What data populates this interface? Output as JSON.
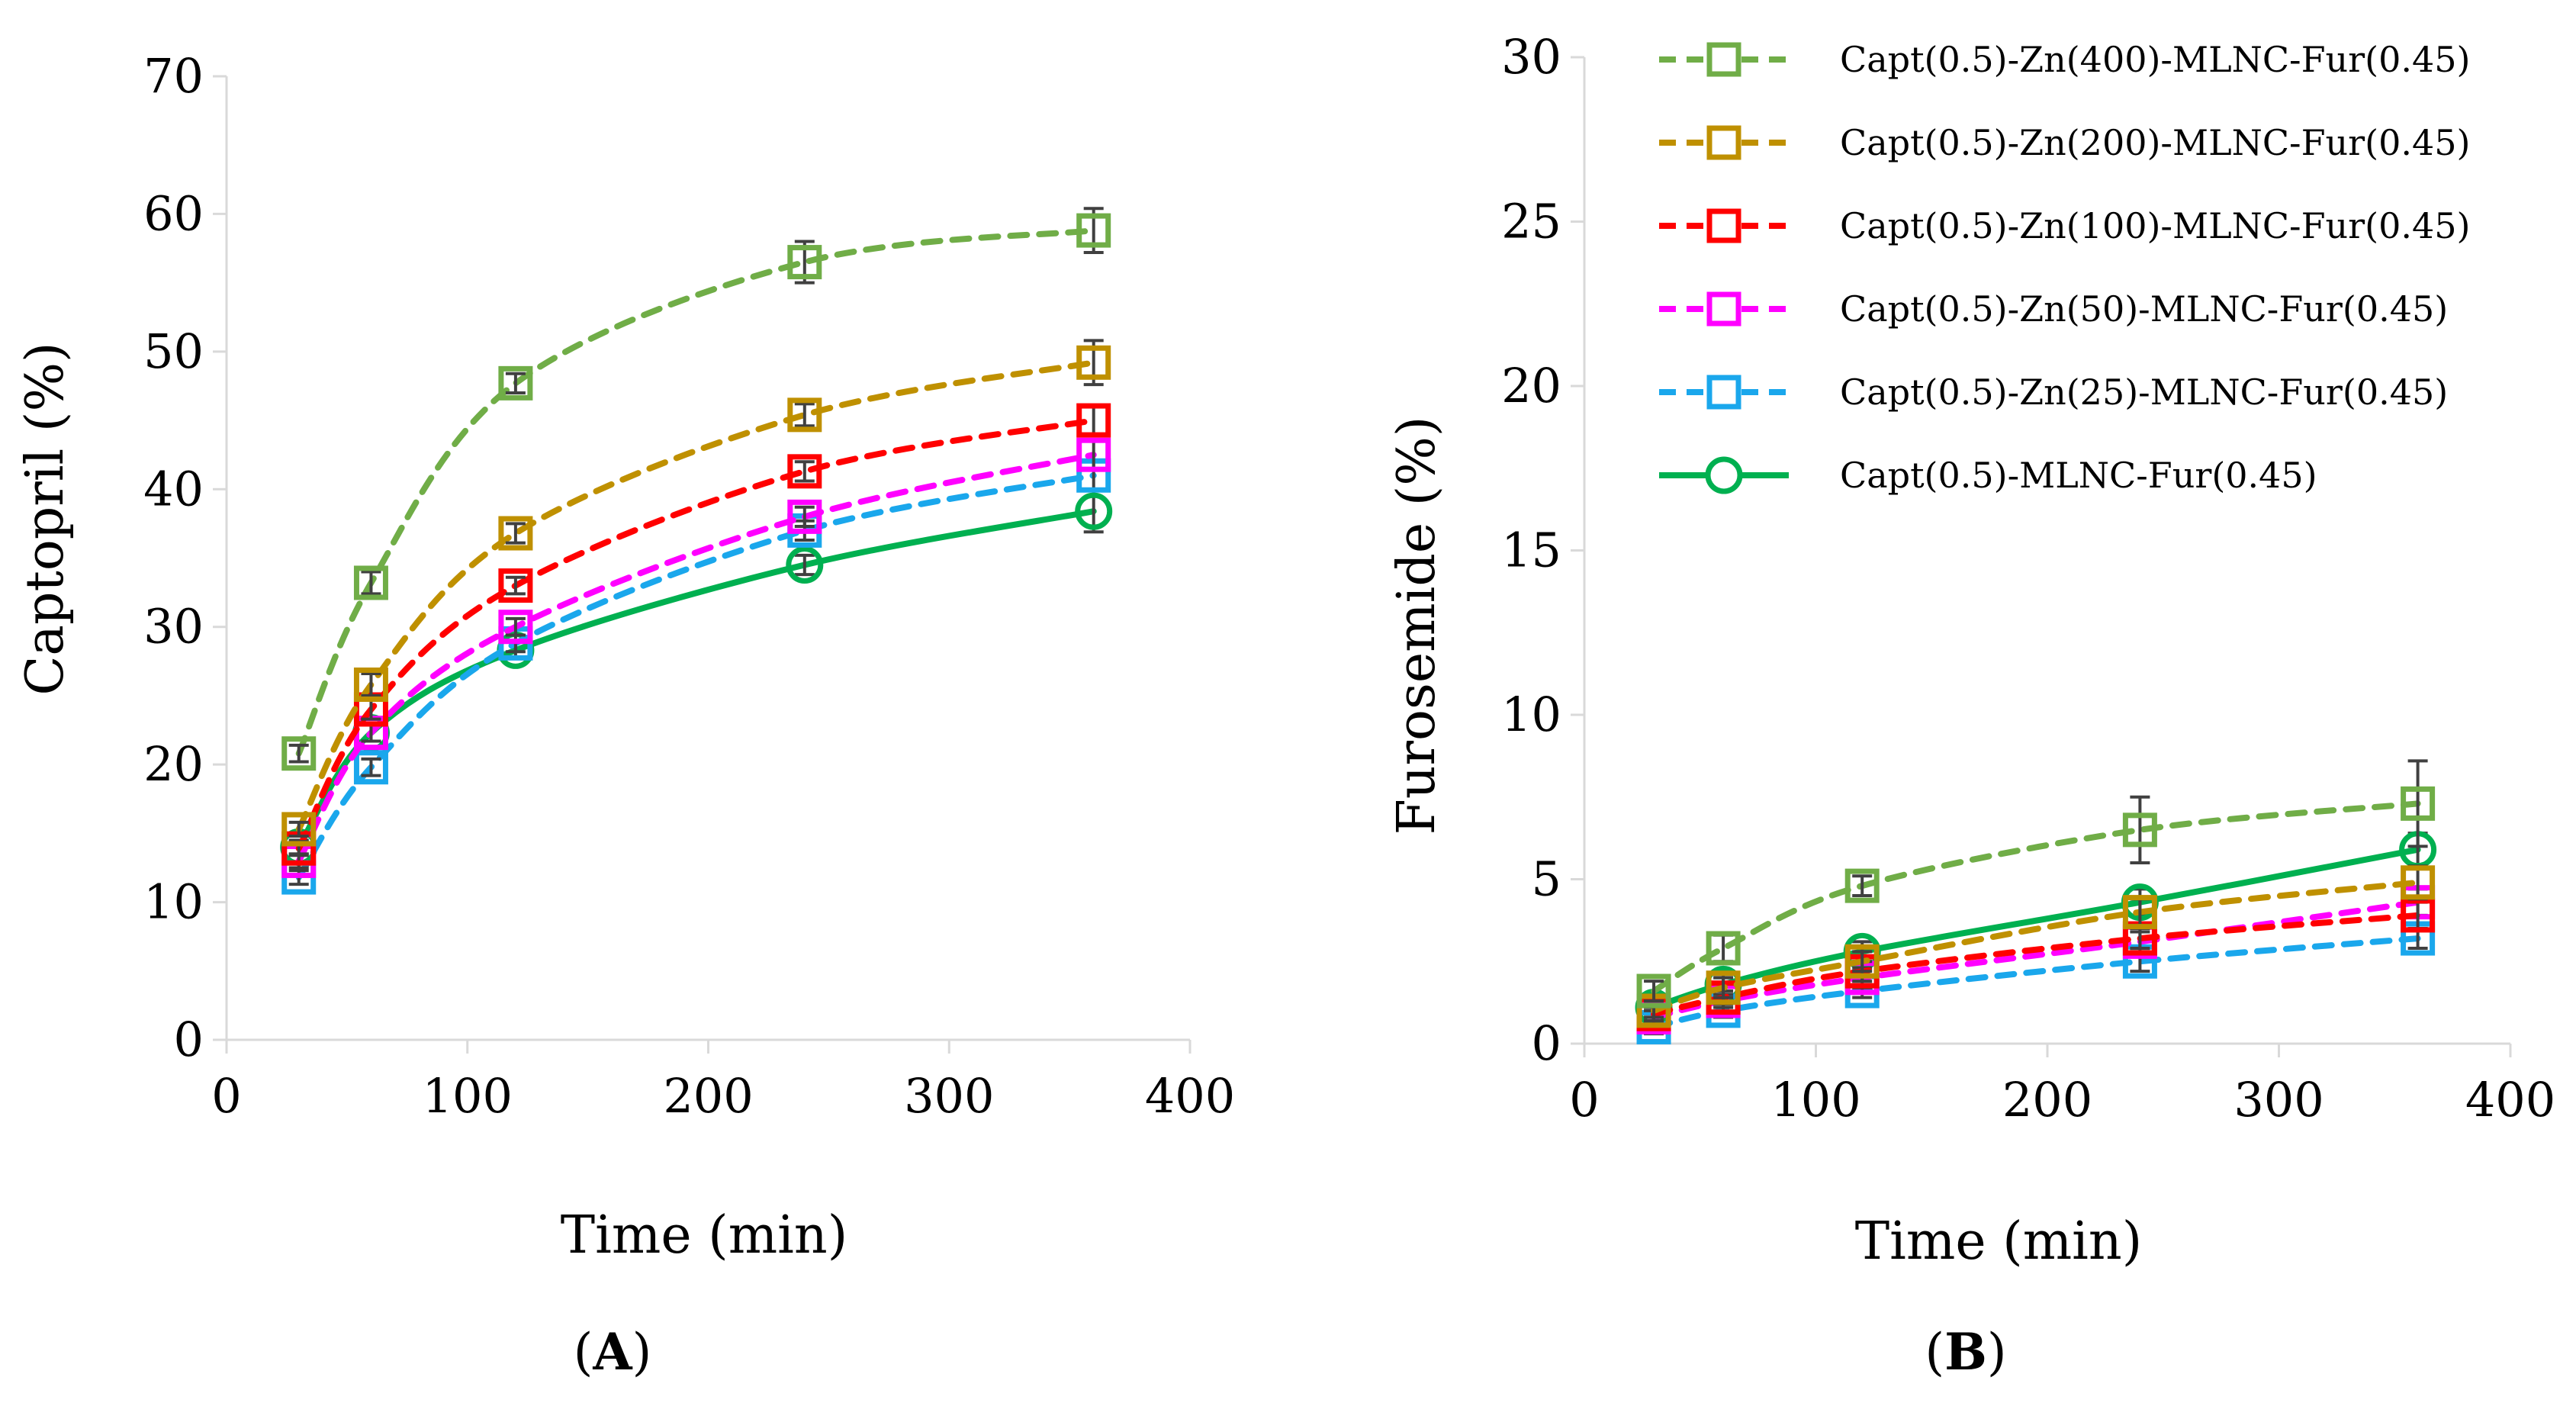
{
  "figure": {
    "panel_a_label": "A",
    "panel_b_label": "B",
    "paren_open": "(",
    "paren_close": ")"
  },
  "legend": {
    "entries": [
      {
        "label": "Capt(0.5)-Zn(400)-MLNC-Fur(0.45)",
        "color": "#70ad47",
        "marker": "square",
        "dash": true
      },
      {
        "label": "Capt(0.5)-Zn(200)-MLNC-Fur(0.45)",
        "color": "#bf9000",
        "marker": "square",
        "dash": true
      },
      {
        "label": "Capt(0.5)-Zn(100)-MLNC-Fur(0.45)",
        "color": "#ff0000",
        "marker": "square",
        "dash": true
      },
      {
        "label": "Capt(0.5)-Zn(50)-MLNC-Fur(0.45)",
        "color": "#ff00ff",
        "marker": "square",
        "dash": true
      },
      {
        "label": "Capt(0.5)-Zn(25)-MLNC-Fur(0.45)",
        "color": "#1aa7ec",
        "marker": "square",
        "dash": true
      },
      {
        "label": "Capt(0.5)-MLNC-Fur(0.45)",
        "color": "#00b050",
        "marker": "circle",
        "dash": false
      }
    ]
  },
  "chart_data": [
    {
      "type": "line",
      "panel": "A",
      "title": "",
      "xlabel": "Time (min)",
      "ylabel": "Captopril (%)",
      "xlim": [
        0,
        400
      ],
      "ylim": [
        0,
        70
      ],
      "xticks": [
        0,
        100,
        200,
        300,
        400
      ],
      "yticks": [
        0,
        10,
        20,
        30,
        40,
        50,
        60,
        70
      ],
      "grid": false,
      "x": [
        30,
        60,
        120,
        240,
        360
      ],
      "series": [
        {
          "name": "Capt(0.5)-Zn(400)-MLNC-Fur(0.45)",
          "values": [
            20.8,
            33.2,
            47.7,
            56.5,
            58.8
          ],
          "errors": [
            0.6,
            0.8,
            0.7,
            1.5,
            1.6
          ]
        },
        {
          "name": "Capt(0.5)-Zn(200)-MLNC-Fur(0.45)",
          "values": [
            15.3,
            25.8,
            36.8,
            45.4,
            49.2
          ],
          "errors": [
            0.5,
            0.8,
            0.7,
            0.8,
            1.6
          ]
        },
        {
          "name": "Capt(0.5)-Zn(100)-MLNC-Fur(0.45)",
          "values": [
            13.9,
            24.0,
            33.0,
            41.3,
            45.0
          ],
          "errors": [
            0.5,
            0.7,
            0.6,
            0.7,
            1.0
          ]
        },
        {
          "name": "Capt(0.5)-Zn(50)-MLNC-Fur(0.45)",
          "values": [
            13.0,
            22.3,
            30.0,
            38.0,
            42.5
          ],
          "errors": [
            0.5,
            0.6,
            0.6,
            0.7,
            1.0
          ]
        },
        {
          "name": "Capt(0.5)-Zn(25)-MLNC-Fur(0.45)",
          "values": [
            11.8,
            19.8,
            28.8,
            37.0,
            41.0
          ],
          "errors": [
            0.5,
            0.6,
            0.6,
            0.7,
            1.0
          ]
        },
        {
          "name": "Capt(0.5)-MLNC-Fur(0.45)",
          "values": [
            14.0,
            22.3,
            28.3,
            34.5,
            38.4
          ],
          "errors": [
            0.5,
            0.6,
            0.6,
            0.7,
            1.5
          ]
        }
      ]
    },
    {
      "type": "line",
      "panel": "B",
      "title": "",
      "xlabel": "Time (min)",
      "ylabel": "Furosemide (%)",
      "xlim": [
        0,
        400
      ],
      "ylim": [
        0,
        30
      ],
      "xticks": [
        0,
        100,
        200,
        300,
        400
      ],
      "yticks": [
        0,
        5,
        10,
        15,
        20,
        25,
        30
      ],
      "grid": false,
      "x": [
        30,
        60,
        120,
        240,
        360
      ],
      "series": [
        {
          "name": "Capt(0.5)-Zn(400)-MLNC-Fur(0.45)",
          "values": [
            1.6,
            2.9,
            4.8,
            6.5,
            7.3
          ],
          "errors": [
            0.3,
            0.4,
            0.3,
            1.0,
            1.3
          ]
        },
        {
          "name": "Capt(0.5)-Zn(200)-MLNC-Fur(0.45)",
          "values": [
            1.0,
            1.7,
            2.5,
            4.0,
            4.9
          ],
          "errors": [
            0.2,
            0.3,
            0.3,
            0.4,
            0.5
          ]
        },
        {
          "name": "Capt(0.5)-Zn(100)-MLNC-Fur(0.45)",
          "values": [
            0.9,
            1.4,
            2.2,
            3.2,
            3.9
          ],
          "errors": [
            0.2,
            0.2,
            0.3,
            0.3,
            0.4
          ]
        },
        {
          "name": "Capt(0.5)-Zn(50)-MLNC-Fur(0.45)",
          "values": [
            0.8,
            1.3,
            2.0,
            3.1,
            4.3
          ],
          "errors": [
            0.2,
            0.2,
            0.3,
            0.3,
            0.4
          ]
        },
        {
          "name": "Capt(0.5)-Zn(25)-MLNC-Fur(0.45)",
          "values": [
            0.5,
            1.0,
            1.6,
            2.5,
            3.2
          ],
          "errors": [
            0.2,
            0.2,
            0.2,
            0.3,
            0.3
          ]
        },
        {
          "name": "Capt(0.5)-MLNC-Fur(0.45)",
          "values": [
            1.1,
            1.8,
            2.8,
            4.3,
            5.9
          ],
          "errors": [
            0.2,
            0.3,
            0.3,
            0.4,
            0.5
          ]
        }
      ]
    }
  ]
}
